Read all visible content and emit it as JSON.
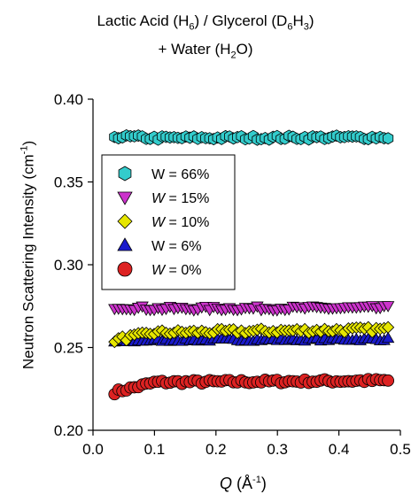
{
  "chart_data": {
    "type": "scatter",
    "title": {
      "line1_a": "Lactic Acid (H",
      "line1_b": "6",
      "line1_c": ") / Glycerol (D",
      "line1_d": "6",
      "line1_e": "H",
      "line1_f": "3",
      "line1_g": ")",
      "line2_a": "+ Water (H",
      "line2_b": "2",
      "line2_c": "O)"
    },
    "xlabel": {
      "var": "Q",
      "unit_a": " (Å",
      "unit_sup": "-1",
      "unit_b": ")"
    },
    "ylabel": {
      "text": "Neutron Scattering Intensity (cm",
      "sup": "-1",
      "end": ")"
    },
    "xlim": [
      0.0,
      0.5
    ],
    "ylim": [
      0.2,
      0.4
    ],
    "xticks": [
      "0.0",
      "0.1",
      "0.2",
      "0.3",
      "0.4",
      "0.5"
    ],
    "yticks": [
      "0.20",
      "0.25",
      "0.30",
      "0.35",
      "0.40"
    ],
    "grid": false,
    "legend_position": "upper-left",
    "series": [
      {
        "name": "W = 66%",
        "prefix": "W",
        "suffix": " = 66%",
        "italic": false,
        "marker": "hexagon",
        "color": "#33cccc",
        "y_start": 0.3775,
        "y_mid": 0.3765,
        "y_end": 0.377,
        "noise": 0.0012,
        "x_range": [
          0.035,
          0.48
        ]
      },
      {
        "name": "W = 15%",
        "prefix": "W",
        "suffix": " = 15%",
        "italic": true,
        "marker": "triangle-down",
        "color": "#cc33cc",
        "y_start": 0.2745,
        "y_mid": 0.2735,
        "y_end": 0.274,
        "noise": 0.0012,
        "x_range": [
          0.035,
          0.48
        ]
      },
      {
        "name": "W = 10%",
        "prefix": "W",
        "suffix": " = 10%",
        "italic": true,
        "marker": "diamond",
        "color": "#e6e600",
        "y_start": 0.2545,
        "y_mid": 0.259,
        "y_end": 0.261,
        "noise": 0.0015,
        "x_range": [
          0.035,
          0.48
        ]
      },
      {
        "name": "W = 6%",
        "prefix": "W",
        "suffix": " = 6%",
        "italic": false,
        "marker": "triangle-up",
        "color": "#1a1acc",
        "y_start": 0.2535,
        "y_mid": 0.2545,
        "y_end": 0.255,
        "noise": 0.0008,
        "x_range": [
          0.035,
          0.48
        ]
      },
      {
        "name": "W = 0%",
        "prefix": "W",
        "suffix": " = 0%",
        "italic": true,
        "marker": "circle",
        "color": "#dd2222",
        "y_start": 0.223,
        "y_mid": 0.229,
        "y_end": 0.23,
        "noise": 0.0012,
        "x_range": [
          0.035,
          0.48
        ]
      }
    ]
  }
}
